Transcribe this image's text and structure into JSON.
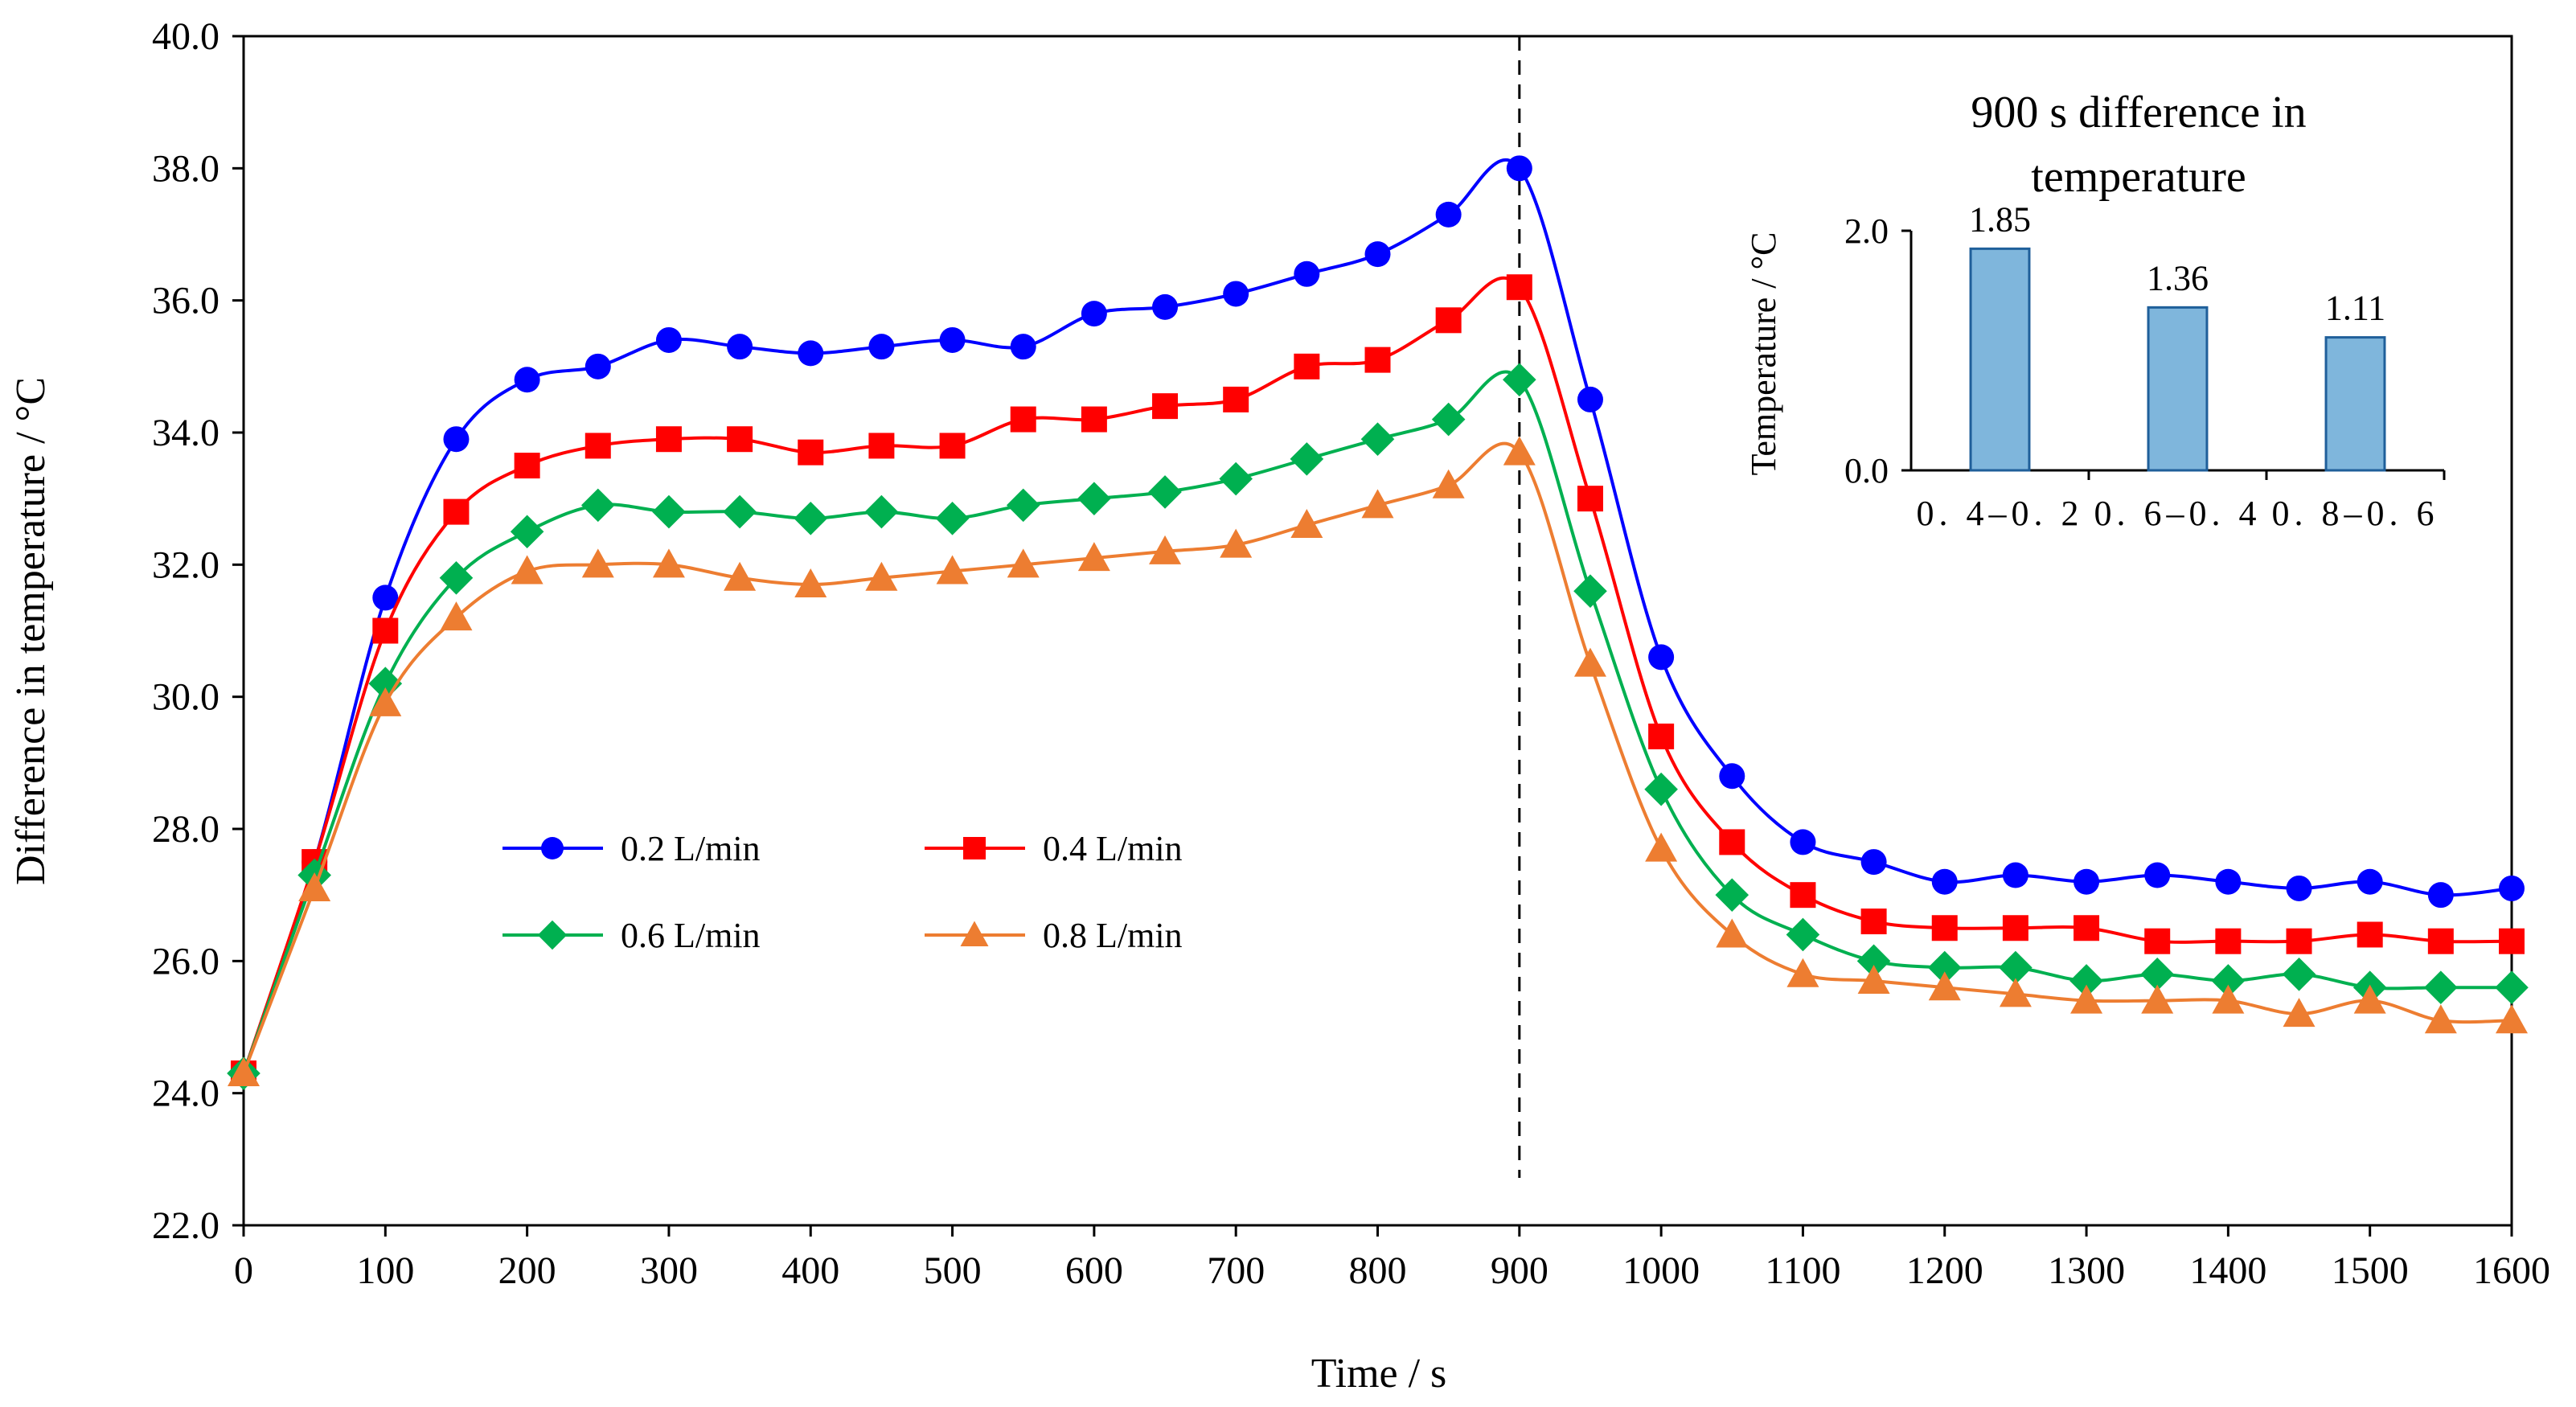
{
  "chart_data": [
    {
      "type": "line",
      "title": "",
      "xlabel": "Time / s",
      "ylabel": "Difference in temperature / °C",
      "xlim": [
        0,
        1600
      ],
      "ylim": [
        22.0,
        40.0
      ],
      "x_ticks": [
        "0",
        "100",
        "200",
        "300",
        "400",
        "500",
        "600",
        "700",
        "800",
        "900",
        "1000",
        "1100",
        "1200",
        "1300",
        "1400",
        "1500",
        "1600"
      ],
      "y_ticks": [
        "22.0",
        "24.0",
        "26.0",
        "28.0",
        "30.0",
        "32.0",
        "34.0",
        "36.0",
        "38.0",
        "40.0"
      ],
      "grid": false,
      "legend_position": "lower-left-center",
      "annotations": {
        "vertical_dashed_line_x": 900
      },
      "x": [
        0,
        50,
        100,
        150,
        200,
        250,
        300,
        350,
        400,
        450,
        500,
        550,
        600,
        650,
        700,
        750,
        800,
        850,
        900,
        950,
        1000,
        1050,
        1100,
        1150,
        1200,
        1250,
        1300,
        1350,
        1400,
        1450,
        1500,
        1550,
        1600
      ],
      "series": [
        {
          "name": "0.2 L/min",
          "color": "#0000ff",
          "marker": "circle",
          "values": [
            24.3,
            27.5,
            31.5,
            33.9,
            34.8,
            35.0,
            35.4,
            35.3,
            35.2,
            35.3,
            35.4,
            35.3,
            35.8,
            35.9,
            36.1,
            36.4,
            36.7,
            37.3,
            38.0,
            34.5,
            30.6,
            28.8,
            27.8,
            27.5,
            27.2,
            27.3,
            27.2,
            27.3,
            27.2,
            27.1,
            27.2,
            27.0,
            27.1
          ]
        },
        {
          "name": "0.4 L/min",
          "color": "#ff0000",
          "marker": "square",
          "values": [
            24.3,
            27.5,
            31.0,
            32.8,
            33.5,
            33.8,
            33.9,
            33.9,
            33.7,
            33.8,
            33.8,
            34.2,
            34.2,
            34.4,
            34.5,
            35.0,
            35.1,
            35.7,
            36.2,
            33.0,
            29.4,
            27.8,
            27.0,
            26.6,
            26.5,
            26.5,
            26.5,
            26.3,
            26.3,
            26.3,
            26.4,
            26.3,
            26.3
          ]
        },
        {
          "name": "0.6 L/min",
          "color": "#00b050",
          "marker": "diamond",
          "values": [
            24.3,
            27.3,
            30.2,
            31.8,
            32.5,
            32.9,
            32.8,
            32.8,
            32.7,
            32.8,
            32.7,
            32.9,
            33.0,
            33.1,
            33.3,
            33.6,
            33.9,
            34.2,
            34.8,
            31.6,
            28.6,
            27.0,
            26.4,
            26.0,
            25.9,
            25.9,
            25.7,
            25.8,
            25.7,
            25.8,
            25.6,
            25.6,
            25.6
          ]
        },
        {
          "name": "0.8 L/min",
          "color": "#ed7d31",
          "marker": "triangle",
          "values": [
            24.3,
            27.1,
            29.9,
            31.2,
            31.9,
            32.0,
            32.0,
            31.8,
            31.7,
            31.8,
            31.9,
            32.0,
            32.1,
            32.2,
            32.3,
            32.6,
            32.9,
            33.2,
            33.7,
            30.5,
            27.7,
            26.4,
            25.8,
            25.7,
            25.6,
            25.5,
            25.4,
            25.4,
            25.4,
            25.2,
            25.4,
            25.1,
            25.1
          ]
        }
      ]
    },
    {
      "type": "bar",
      "title": "900 s difference in temperature",
      "title_lines": [
        "900 s difference in",
        "temperature"
      ],
      "xlabel": "",
      "ylabel": "Temperature / °C",
      "categories": [
        "0. 4–0. 2",
        "0. 6–0. 4",
        "0. 8–0. 6"
      ],
      "values": [
        1.85,
        1.36,
        1.11
      ],
      "data_labels": [
        "1.85",
        "1.36",
        "1.11"
      ],
      "ylim": [
        0.0,
        2.0
      ],
      "y_ticks": [
        "0.0",
        "2.0"
      ],
      "bar_color": "#7fb6dc",
      "bar_edge_color": "#1f5f9a"
    }
  ]
}
